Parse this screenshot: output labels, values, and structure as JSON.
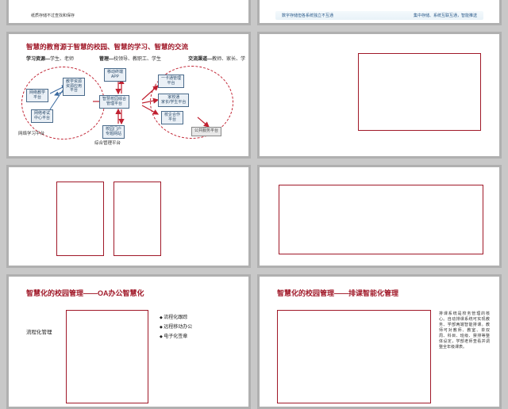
{
  "colors": {
    "page_bg": "#c8c8c8",
    "slide_bg": "#ffffff",
    "slide_border": "#b0b0b0",
    "accent": "#a01828",
    "node_fill": "#eaf0f6",
    "node_border": "#4a6a8a",
    "node_text": "#2a4a6a",
    "arrow_red": "#c02030",
    "arrow_blue": "#3a6aa0"
  },
  "row1": {
    "left": {
      "line": "纸质存储不过查找和保存"
    },
    "right": {
      "c1": "数字存储但各系统独立不互通",
      "c2": "集中存储、系统互联互通，智能推送"
    }
  },
  "slide3": {
    "title": "智慧的教育源于智慧的校园、智慧的学习、智慧的交流",
    "labels": {
      "l1": "学习资源—",
      "l1sub": "学生、老师",
      "l2": "管理—",
      "l2sub": "校领导、教职工、学生",
      "l3": "交流渠道—",
      "l3sub": "教师、家长、学生、企业"
    },
    "nodes": {
      "n1": "网络教学\n平台",
      "n2": "教学资源\n资源应用\n平台",
      "n3": "网络考试\n中心平台",
      "n4": "移动终端\nAPP",
      "n5": "智慧校园综合\n管理平台",
      "n6": "校园门户\n专题网站",
      "n7": "一卡通管理\n平台",
      "n8": "家校通\n家长/学生平台",
      "n9": "校企合作\n平台",
      "n10": "公共服务平台"
    },
    "captions": {
      "c1": "网络学习平台",
      "c2": "综合管理平台"
    }
  },
  "slide7": {
    "title": "智慧化的校园管理——OA办公智慧化",
    "left_label": "流程化管理",
    "bullets": [
      "流程化跟踪",
      "远程移动办公",
      "电子化签章"
    ]
  },
  "slide8": {
    "title": "智慧化的校园管理——排课智能化管理",
    "desc": "排课系统是校务管理的核心。自动排课系统可实现教务、学部两端智能排课。教师可对教师、教室、单双周、科目、班级、禁排等整体设定，学部老师查看并调整全年级课表。"
  }
}
